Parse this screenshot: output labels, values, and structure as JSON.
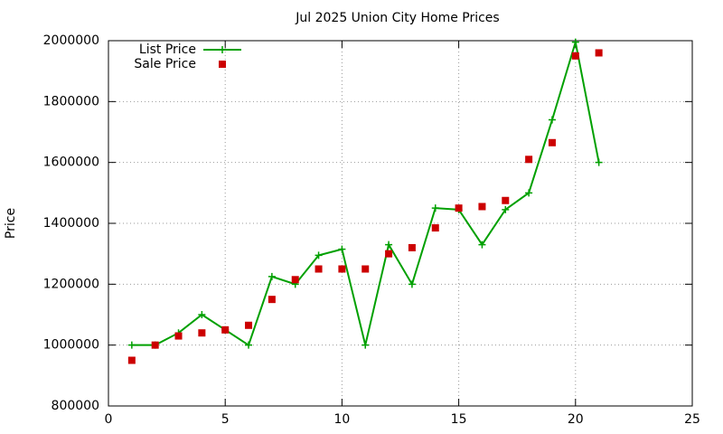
{
  "chart_data": {
    "type": "line",
    "title": "Jul 2025 Union City Home Prices",
    "y_label": "Price",
    "x": [
      1,
      2,
      3,
      4,
      5,
      6,
      7,
      8,
      9,
      10,
      11,
      12,
      13,
      14,
      15,
      16,
      17,
      18,
      19,
      20,
      21
    ],
    "series": [
      {
        "name": "List Price",
        "color": "#00a000",
        "style": "linespoints",
        "values": [
          1000000,
          1000000,
          1040000,
          1100000,
          1050000,
          1000000,
          1225000,
          1200000,
          1295000,
          1315000,
          1000000,
          1330000,
          1200000,
          1450000,
          1445000,
          1330000,
          1445000,
          1500000,
          1740000,
          1995000,
          1600000
        ]
      },
      {
        "name": "Sale Price",
        "color": "#cc0000",
        "style": "points",
        "values": [
          950000,
          1000000,
          1030000,
          1040000,
          1050000,
          1065000,
          1150000,
          1215000,
          1250000,
          1250000,
          1250000,
          1300000,
          1320000,
          1385000,
          1450000,
          1455000,
          1475000,
          1610000,
          1665000,
          1950000,
          1960000
        ]
      }
    ],
    "xlim": [
      0,
      25
    ],
    "xticks": [
      0,
      5,
      10,
      15,
      20,
      25
    ],
    "ylim": [
      800000,
      2000000
    ],
    "yticks": [
      800000,
      1000000,
      1200000,
      1400000,
      1600000,
      1800000,
      2000000
    ],
    "grid": true,
    "legend": "top-left"
  }
}
